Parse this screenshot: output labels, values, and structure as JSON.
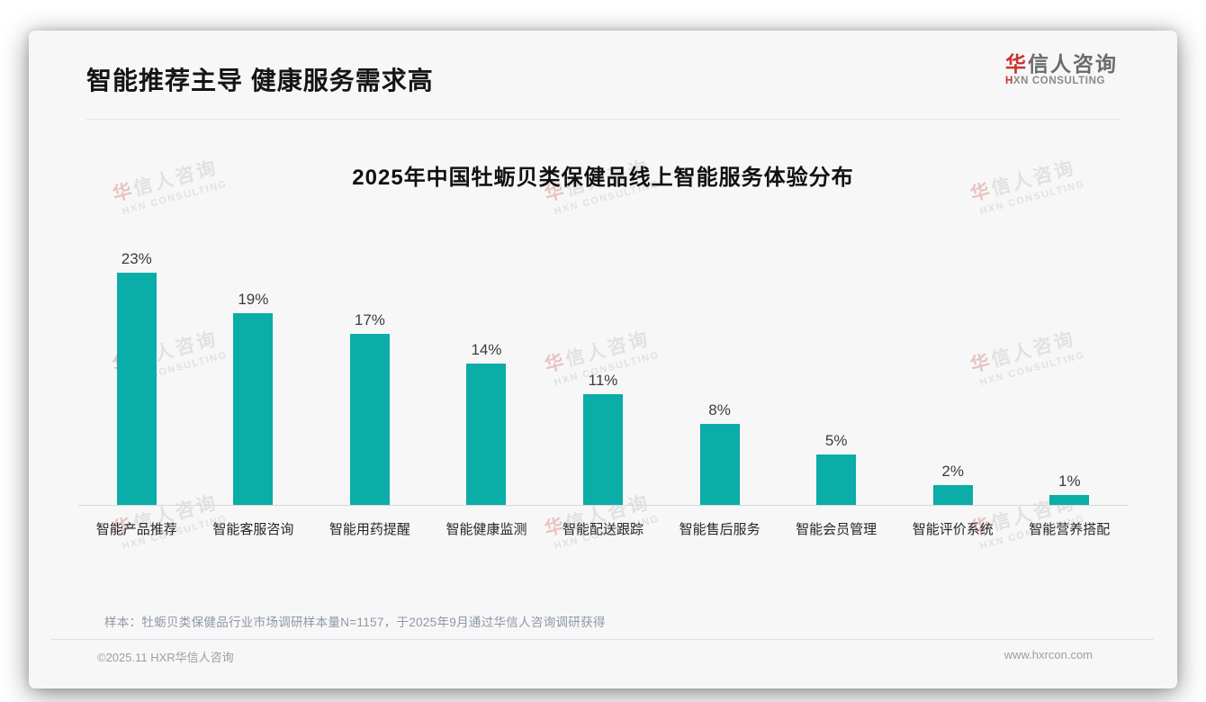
{
  "header": {
    "title": "智能推荐主导 健康服务需求高"
  },
  "logo": {
    "cn_accent": "华",
    "cn_rest": "信人咨询",
    "en_accent": "H",
    "en_rest": "XN CONSULTING"
  },
  "watermark": {
    "line1_accent": "华",
    "line1_rest": "信人咨询",
    "line2": "HXN CONSULTING"
  },
  "chart_data": {
    "type": "bar",
    "title": "2025年中国牡蛎贝类保健品线上智能服务体验分布",
    "categories": [
      "智能产品推荐",
      "智能客服咨询",
      "智能用药提醒",
      "智能健康监测",
      "智能配送跟踪",
      "智能售后服务",
      "智能会员管理",
      "智能评价系统",
      "智能营养搭配"
    ],
    "values": [
      23,
      19,
      17,
      14,
      11,
      8,
      5,
      2,
      1
    ],
    "unit": "%",
    "value_label_suffix": "%",
    "xlabel": "",
    "ylabel": "",
    "ylim": [
      0,
      25
    ],
    "grid": false,
    "legend": "none",
    "value_labels_position": "above bars"
  },
  "note": "样本：牡蛎贝类保健品行业市场调研样本量N=1157，于2025年9月通过华信人咨询调研获得",
  "footer": {
    "copyright": "©2025.11 HXR华信人咨询",
    "website": "www.hxrcon.com"
  },
  "colors": {
    "bar": "#0bada8",
    "brand_red": "#c8342b",
    "title_text": "#151515",
    "note_text": "#8e97a8"
  }
}
